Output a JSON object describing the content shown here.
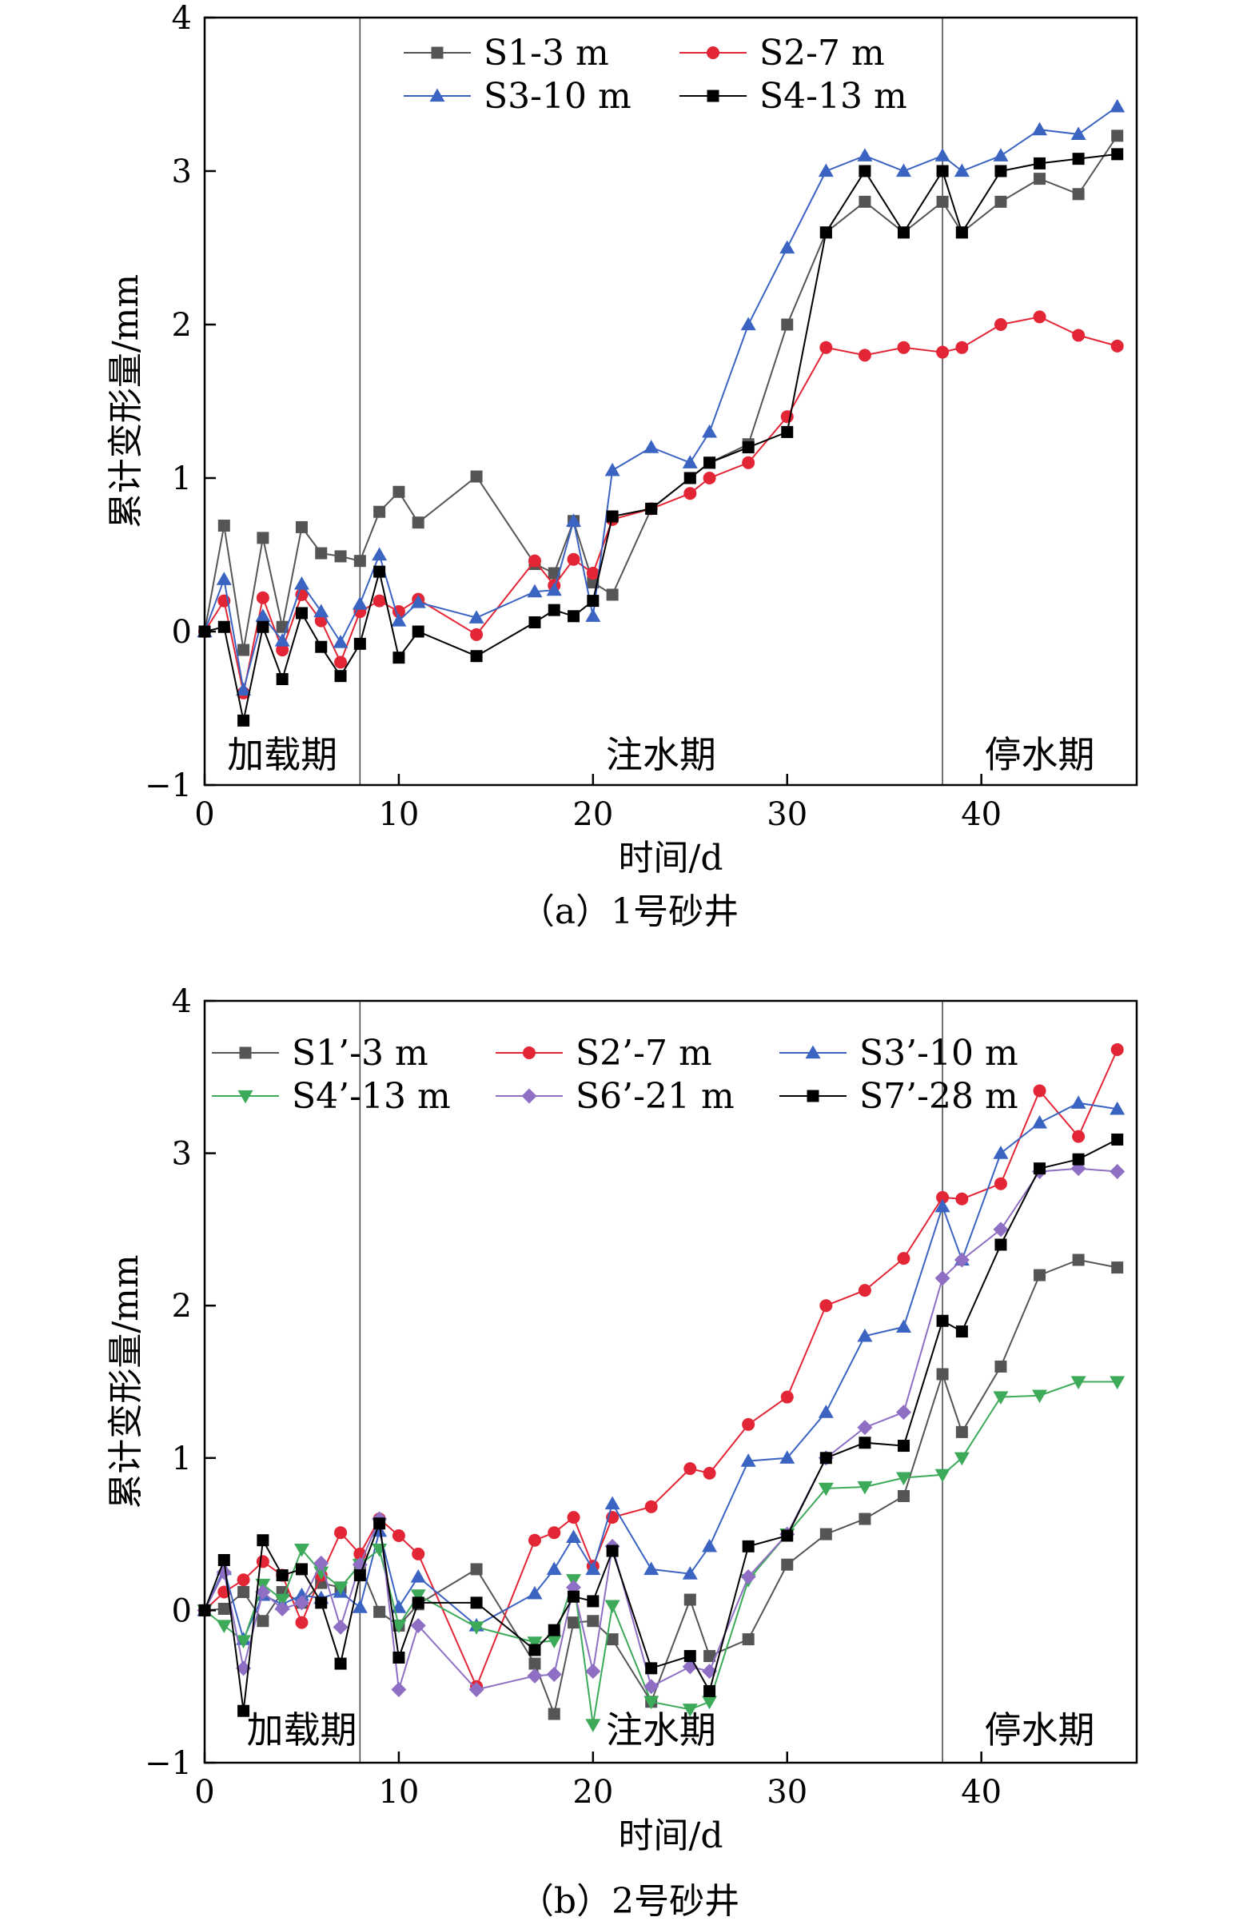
{
  "chart_data": [
    {
      "type": "line",
      "caption": "（a）1号砂井",
      "xlabel": "时间/d",
      "ylabel": "累计变形量/mm",
      "xlim": [
        0,
        48
      ],
      "ylim": [
        -1,
        4
      ],
      "xticks": [
        0,
        10,
        20,
        30,
        40
      ],
      "yticks": [
        -1,
        0,
        1,
        2,
        3,
        4
      ],
      "grid": false,
      "legend_position": "top",
      "phase_dividers": [
        8,
        38
      ],
      "phases": [
        {
          "label": "加载期",
          "x": 4
        },
        {
          "label": "注水期",
          "x": 23.5
        },
        {
          "label": "停水期",
          "x": 43
        }
      ],
      "series": [
        {
          "name": "S1-3 m",
          "color": "#555555",
          "marker": "square",
          "x": [
            0,
            1,
            2,
            3,
            4,
            5,
            6,
            7,
            8,
            9,
            10,
            11,
            14,
            17,
            18,
            19,
            20,
            21,
            23,
            25,
            26,
            28,
            30,
            32,
            34,
            36,
            38,
            39,
            41,
            43,
            45,
            47
          ],
          "y": [
            0,
            0.69,
            -0.12,
            0.61,
            0.03,
            0.68,
            0.51,
            0.49,
            0.46,
            0.78,
            0.91,
            0.71,
            1.01,
            0.44,
            0.38,
            0.72,
            0.32,
            0.24,
            0.8,
            1.0,
            1.1,
            1.22,
            2.0,
            2.6,
            2.8,
            2.6,
            2.8,
            2.6,
            2.8,
            2.95,
            2.85,
            3.23
          ]
        },
        {
          "name": "S2-7 m",
          "color": "#e32636",
          "marker": "circle",
          "x": [
            0,
            1,
            2,
            3,
            4,
            5,
            6,
            7,
            8,
            9,
            10,
            11,
            14,
            17,
            18,
            19,
            20,
            21,
            23,
            25,
            26,
            28,
            30,
            32,
            34,
            36,
            38,
            39,
            41,
            43,
            45,
            47
          ],
          "y": [
            0,
            0.2,
            -0.4,
            0.22,
            -0.12,
            0.24,
            0.07,
            -0.2,
            0.13,
            0.2,
            0.13,
            0.21,
            -0.02,
            0.46,
            0.3,
            0.47,
            0.38,
            0.73,
            0.8,
            0.9,
            1.0,
            1.1,
            1.4,
            1.85,
            1.8,
            1.85,
            1.82,
            1.85,
            2.0,
            2.05,
            1.93,
            1.86
          ]
        },
        {
          "name": "S3-10 m",
          "color": "#3b64c2",
          "marker": "triangle-up",
          "x": [
            0,
            1,
            2,
            3,
            4,
            5,
            6,
            7,
            8,
            9,
            10,
            11,
            14,
            17,
            18,
            19,
            20,
            21,
            23,
            25,
            26,
            28,
            30,
            32,
            34,
            36,
            38,
            39,
            41,
            43,
            45,
            47
          ],
          "y": [
            0,
            0.34,
            -0.38,
            0.1,
            -0.06,
            0.31,
            0.13,
            -0.07,
            0.18,
            0.5,
            0.07,
            0.19,
            0.09,
            0.26,
            0.27,
            0.72,
            0.1,
            1.05,
            1.2,
            1.1,
            1.3,
            2.0,
            2.5,
            3.0,
            3.1,
            3.0,
            3.1,
            3.0,
            3.1,
            3.27,
            3.24,
            3.42
          ]
        },
        {
          "name": "S4-13 m",
          "color": "#000000",
          "marker": "square",
          "x": [
            0,
            1,
            2,
            3,
            4,
            5,
            6,
            7,
            8,
            9,
            10,
            11,
            14,
            17,
            18,
            19,
            20,
            21,
            23,
            25,
            26,
            28,
            30,
            32,
            34,
            36,
            38,
            39,
            41,
            43,
            45,
            47
          ],
          "y": [
            0,
            0.03,
            -0.58,
            0.03,
            -0.31,
            0.12,
            -0.1,
            -0.29,
            -0.08,
            0.39,
            -0.17,
            0.0,
            -0.16,
            0.06,
            0.14,
            0.1,
            0.2,
            0.75,
            0.8,
            1.0,
            1.1,
            1.2,
            1.3,
            2.6,
            3.0,
            2.6,
            3.0,
            2.6,
            3.0,
            3.05,
            3.08,
            3.11
          ]
        }
      ]
    },
    {
      "type": "line",
      "caption": "（b）2号砂井",
      "xlabel": "时间/d",
      "ylabel": "累计变形量/mm",
      "xlim": [
        0,
        48
      ],
      "ylim": [
        -1,
        4
      ],
      "xticks": [
        0,
        10,
        20,
        30,
        40
      ],
      "yticks": [
        -1,
        0,
        1,
        2,
        3,
        4
      ],
      "grid": false,
      "legend_position": "top",
      "phase_dividers": [
        8,
        38
      ],
      "phases": [
        {
          "label": "加载期",
          "x": 5
        },
        {
          "label": "注水期",
          "x": 23.5
        },
        {
          "label": "停水期",
          "x": 43
        }
      ],
      "series": [
        {
          "name": "S1’-3 m",
          "color": "#555555",
          "marker": "square",
          "x": [
            0,
            1,
            2,
            3,
            4,
            5,
            6,
            7,
            8,
            9,
            10,
            11,
            14,
            17,
            18,
            19,
            20,
            21,
            23,
            25,
            26,
            28,
            30,
            32,
            34,
            36,
            38,
            39,
            41,
            43,
            45,
            47
          ],
          "y": [
            0,
            0.01,
            0.12,
            -0.07,
            0.12,
            0.05,
            0.18,
            0.15,
            0.3,
            -0.01,
            -0.1,
            0.04,
            0.27,
            -0.35,
            -0.68,
            -0.08,
            -0.07,
            -0.19,
            -0.6,
            0.07,
            -0.3,
            -0.19,
            0.3,
            0.5,
            0.6,
            0.75,
            1.55,
            1.17,
            1.6,
            2.2,
            2.3,
            2.25
          ]
        },
        {
          "name": "S2’-7 m",
          "color": "#e32636",
          "marker": "circle",
          "x": [
            0,
            1,
            2,
            3,
            4,
            5,
            6,
            7,
            8,
            9,
            10,
            11,
            14,
            17,
            18,
            19,
            20,
            21,
            23,
            25,
            26,
            28,
            30,
            32,
            34,
            36,
            38,
            39,
            41,
            43,
            45,
            47
          ],
          "y": [
            0,
            0.12,
            0.2,
            0.32,
            0.23,
            -0.08,
            0.23,
            0.51,
            0.37,
            0.6,
            0.49,
            0.37,
            -0.5,
            0.46,
            0.51,
            0.61,
            0.29,
            0.61,
            0.68,
            0.93,
            0.9,
            1.22,
            1.4,
            2.0,
            2.1,
            2.31,
            2.71,
            2.7,
            2.8,
            3.41,
            3.11,
            3.68
          ]
        },
        {
          "name": "S3’-10 m",
          "color": "#3b64c2",
          "marker": "triangle-up",
          "x": [
            0,
            1,
            2,
            3,
            4,
            5,
            6,
            7,
            8,
            9,
            10,
            11,
            14,
            17,
            18,
            19,
            20,
            21,
            23,
            25,
            26,
            28,
            30,
            32,
            34,
            36,
            38,
            39,
            41,
            43,
            45,
            47
          ],
          "y": [
            0,
            0.27,
            -0.19,
            0.1,
            0.04,
            0.1,
            0.08,
            0.12,
            0.02,
            0.52,
            0.02,
            0.22,
            -0.1,
            0.11,
            0.27,
            0.48,
            0.27,
            0.7,
            0.27,
            0.24,
            0.42,
            0.98,
            1.0,
            1.3,
            1.8,
            1.86,
            2.65,
            2.3,
            3.0,
            3.2,
            3.33,
            3.29
          ]
        },
        {
          "name": "S4’-13 m",
          "color": "#3daa5a",
          "marker": "triangle-down",
          "x": [
            0,
            1,
            2,
            3,
            4,
            5,
            6,
            7,
            8,
            9,
            10,
            11,
            14,
            17,
            18,
            19,
            20,
            21,
            23,
            25,
            26,
            28,
            30,
            32,
            34,
            36,
            38,
            39,
            41,
            43,
            45,
            47
          ],
          "y": [
            0,
            -0.1,
            -0.2,
            0.17,
            0.07,
            0.4,
            0.25,
            0.15,
            0.3,
            0.4,
            -0.1,
            0.1,
            -0.11,
            -0.21,
            -0.2,
            0.2,
            -0.75,
            0.03,
            -0.6,
            -0.65,
            -0.6,
            0.2,
            0.5,
            0.8,
            0.81,
            0.87,
            0.89,
            1.0,
            1.4,
            1.41,
            1.5,
            1.5
          ]
        },
        {
          "name": "S6’-21 m",
          "color": "#8e6fc4",
          "marker": "diamond",
          "x": [
            0,
            1,
            2,
            3,
            4,
            5,
            6,
            7,
            8,
            9,
            10,
            11,
            14,
            17,
            18,
            19,
            20,
            21,
            23,
            25,
            26,
            28,
            30,
            32,
            34,
            36,
            38,
            39,
            41,
            43,
            45,
            47
          ],
          "y": [
            0,
            0.25,
            -0.38,
            0.12,
            0.01,
            0.05,
            0.31,
            -0.11,
            0.3,
            0.6,
            -0.52,
            -0.1,
            -0.52,
            -0.43,
            -0.42,
            0.15,
            -0.4,
            0.42,
            -0.5,
            -0.37,
            -0.4,
            0.22,
            0.5,
            1.0,
            1.2,
            1.3,
            2.18,
            2.3,
            2.5,
            2.88,
            2.9,
            2.88
          ]
        },
        {
          "name": "S7’-28 m",
          "color": "#000000",
          "marker": "square",
          "x": [
            0,
            1,
            2,
            3,
            4,
            5,
            6,
            7,
            8,
            9,
            10,
            11,
            14,
            17,
            18,
            19,
            20,
            21,
            23,
            25,
            26,
            28,
            30,
            32,
            34,
            36,
            38,
            39,
            41,
            43,
            45,
            47
          ],
          "y": [
            0,
            0.33,
            -0.66,
            0.46,
            0.23,
            0.27,
            0.05,
            -0.35,
            0.23,
            0.57,
            -0.31,
            0.05,
            0.05,
            -0.26,
            -0.13,
            0.09,
            0.06,
            0.39,
            -0.38,
            -0.3,
            -0.53,
            0.42,
            0.49,
            1.0,
            1.1,
            1.08,
            1.9,
            1.83,
            2.4,
            2.9,
            2.96,
            3.09
          ]
        }
      ]
    }
  ]
}
